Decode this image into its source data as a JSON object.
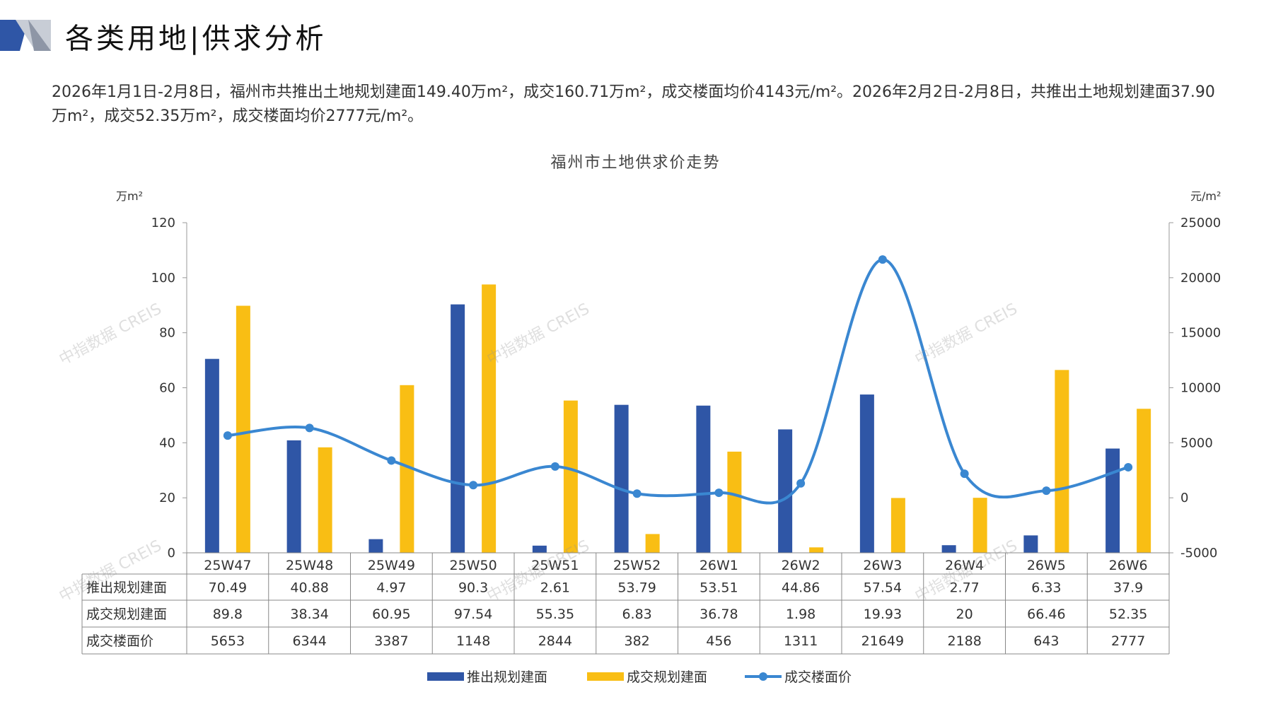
{
  "header": {
    "title": "各类用地|供求分析"
  },
  "description": "2026年1月1日-2月8日，福州市共推出土地规划建面149.40万m²，成交160.71万m²，成交楼面均价4143元/m²。2026年2月2日-2月8日，共推出土地规划建面37.90万m²，成交52.35万m²，成交楼面均价2777元/m²。",
  "watermark": "中指数据 CREIS",
  "chart_data": {
    "type": "bar",
    "title": "福州市土地供求价走势",
    "ylabel": "万m²",
    "y2label": "元/m²",
    "ylim": [
      0,
      120
    ],
    "y2lim": [
      -5000,
      25000
    ],
    "yticks": [
      "0",
      "20",
      "40",
      "60",
      "80",
      "100",
      "120"
    ],
    "y2ticks": [
      "-5000",
      "0",
      "5000",
      "10000",
      "15000",
      "20000",
      "25000"
    ],
    "categories": [
      "25W47",
      "25W48",
      "25W49",
      "25W50",
      "25W51",
      "25W52",
      "26W1",
      "26W2",
      "26W3",
      "26W4",
      "26W5",
      "26W6"
    ],
    "series": [
      {
        "name": "推出规划建面",
        "type": "bar",
        "color": "#2f56a6",
        "values": [
          70.49,
          40.88,
          4.97,
          90.3,
          2.61,
          53.79,
          53.51,
          44.86,
          57.54,
          2.77,
          6.33,
          37.9
        ],
        "labels": [
          "70.49",
          "40.88",
          "4.97",
          "90.3",
          "2.61",
          "53.79",
          "53.51",
          "44.86",
          "57.54",
          "2.77",
          "6.33",
          "37.9"
        ]
      },
      {
        "name": "成交规划建面",
        "type": "bar",
        "color": "#f9be14",
        "values": [
          89.8,
          38.34,
          60.95,
          97.54,
          55.35,
          6.83,
          36.78,
          1.98,
          19.93,
          20,
          66.46,
          52.35
        ],
        "labels": [
          "89.8",
          "38.34",
          "60.95",
          "97.54",
          "55.35",
          "6.83",
          "36.78",
          "1.98",
          "19.93",
          "20",
          "66.46",
          "52.35"
        ]
      },
      {
        "name": "成交楼面价",
        "type": "line",
        "color": "#3a87d1",
        "values": [
          5653,
          6344,
          3387,
          1148,
          2844,
          382,
          456,
          1311,
          21649,
          2188,
          643,
          2777
        ],
        "labels": [
          "5653",
          "6344",
          "3387",
          "1148",
          "2844",
          "382",
          "456",
          "1311",
          "21649",
          "2188",
          "643",
          "2777"
        ]
      }
    ],
    "legend": "bottom"
  }
}
